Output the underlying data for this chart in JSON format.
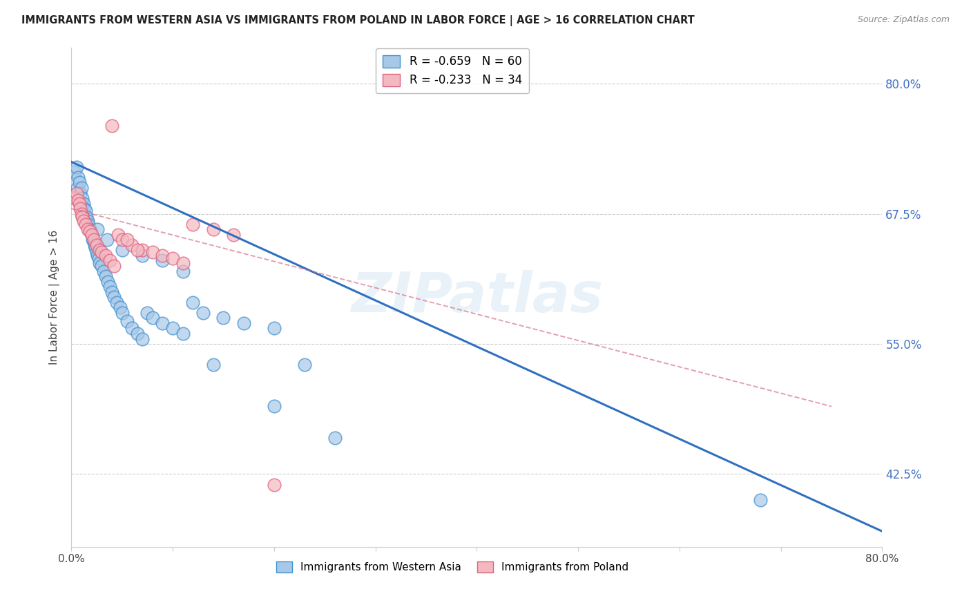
{
  "title": "IMMIGRANTS FROM WESTERN ASIA VS IMMIGRANTS FROM POLAND IN LABOR FORCE | AGE > 16 CORRELATION CHART",
  "source": "Source: ZipAtlas.com",
  "ylabel": "In Labor Force | Age > 16",
  "xmin": 0.0,
  "xmax": 0.8,
  "ymin": 0.355,
  "ymax": 0.835,
  "yticks": [
    0.425,
    0.55,
    0.675,
    0.8
  ],
  "ytick_labels": [
    "42.5%",
    "55.0%",
    "67.5%",
    "80.0%"
  ],
  "legend_blue_r": "R = -0.659",
  "legend_blue_n": "N = 60",
  "legend_pink_r": "R = -0.233",
  "legend_pink_n": "N = 34",
  "legend_blue_label": "Immigrants from Western Asia",
  "legend_pink_label": "Immigrants from Poland",
  "blue_fill": "#a8c8e8",
  "pink_fill": "#f4b8c0",
  "blue_edge": "#4090d0",
  "pink_edge": "#e06080",
  "blue_line_color": "#3070c0",
  "pink_line_color": "#d06080",
  "watermark": "ZIPatlas",
  "blue_x": [
    0.003,
    0.005,
    0.006,
    0.007,
    0.008,
    0.009,
    0.01,
    0.011,
    0.012,
    0.013,
    0.014,
    0.015,
    0.016,
    0.017,
    0.018,
    0.019,
    0.02,
    0.021,
    0.022,
    0.023,
    0.024,
    0.025,
    0.026,
    0.027,
    0.028,
    0.03,
    0.032,
    0.034,
    0.036,
    0.038,
    0.04,
    0.042,
    0.045,
    0.048,
    0.05,
    0.055,
    0.06,
    0.065,
    0.07,
    0.075,
    0.08,
    0.09,
    0.1,
    0.11,
    0.12,
    0.13,
    0.15,
    0.17,
    0.2,
    0.23,
    0.026,
    0.035,
    0.05,
    0.07,
    0.09,
    0.11,
    0.14,
    0.2,
    0.26,
    0.68
  ],
  "blue_y": [
    0.715,
    0.72,
    0.7,
    0.71,
    0.705,
    0.695,
    0.7,
    0.69,
    0.685,
    0.68,
    0.678,
    0.672,
    0.668,
    0.665,
    0.66,
    0.658,
    0.655,
    0.65,
    0.648,
    0.645,
    0.642,
    0.638,
    0.635,
    0.632,
    0.628,
    0.625,
    0.62,
    0.615,
    0.61,
    0.605,
    0.6,
    0.595,
    0.59,
    0.585,
    0.58,
    0.572,
    0.565,
    0.56,
    0.555,
    0.58,
    0.575,
    0.57,
    0.565,
    0.56,
    0.59,
    0.58,
    0.575,
    0.57,
    0.565,
    0.53,
    0.66,
    0.65,
    0.64,
    0.635,
    0.63,
    0.62,
    0.53,
    0.49,
    0.46,
    0.4
  ],
  "pink_x": [
    0.003,
    0.005,
    0.007,
    0.008,
    0.009,
    0.01,
    0.011,
    0.012,
    0.014,
    0.016,
    0.018,
    0.02,
    0.022,
    0.025,
    0.028,
    0.03,
    0.034,
    0.038,
    0.042,
    0.046,
    0.05,
    0.06,
    0.07,
    0.08,
    0.09,
    0.1,
    0.11,
    0.12,
    0.14,
    0.16,
    0.04,
    0.055,
    0.065,
    0.2
  ],
  "pink_y": [
    0.69,
    0.695,
    0.688,
    0.685,
    0.68,
    0.675,
    0.672,
    0.668,
    0.665,
    0.66,
    0.658,
    0.655,
    0.65,
    0.645,
    0.64,
    0.638,
    0.635,
    0.63,
    0.625,
    0.655,
    0.65,
    0.645,
    0.64,
    0.638,
    0.635,
    0.632,
    0.628,
    0.665,
    0.66,
    0.655,
    0.76,
    0.65,
    0.64,
    0.415
  ],
  "blue_line_x": [
    0.0,
    0.8
  ],
  "blue_line_y": [
    0.725,
    0.37
  ],
  "pink_line_x": [
    0.0,
    0.75
  ],
  "pink_line_y": [
    0.68,
    0.49
  ]
}
